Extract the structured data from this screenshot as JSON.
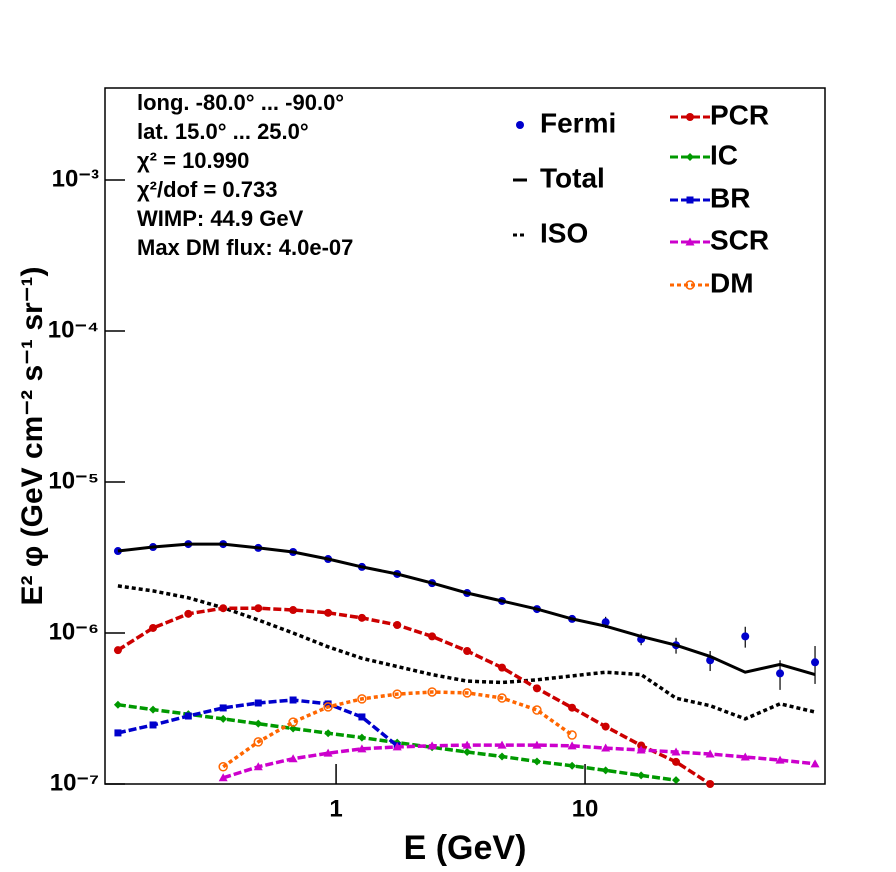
{
  "chart_data": {
    "type": "line",
    "xlabel": "E (GeV)",
    "ylabel": "E² φ (GeV cm⁻² s⁻¹ sr⁻¹)",
    "annotations": [
      "long. -80.0° ... -90.0°",
      "lat. 15.0° ... 25.0°",
      "χ² = 10.990",
      "χ²/dof = 0.733",
      "WIMP: 44.9 GeV",
      "Max DM flux: 4.0e-07"
    ],
    "xlog": true,
    "ylog": true,
    "xlim": [
      0.118,
      92
    ],
    "ylim": [
      1e-07,
      0.00407
    ],
    "xticks": [
      1,
      10
    ],
    "yticks": [
      {
        "value": 1e-07,
        "label": "10⁻⁷"
      },
      {
        "value": 1e-06,
        "label": "10⁻⁶"
      },
      {
        "value": 1e-05,
        "label": "10⁻⁵"
      },
      {
        "value": 0.0001,
        "label": "10⁻⁴"
      },
      {
        "value": 0.001,
        "label": "10⁻³"
      }
    ],
    "x": [
      0.133,
      0.184,
      0.255,
      0.352,
      0.487,
      0.672,
      0.929,
      1.27,
      1.76,
      2.43,
      3.36,
      4.64,
      6.41,
      8.87,
      12.1,
      16.8,
      23.2,
      31.8,
      44.0,
      60.7,
      83.9
    ],
    "series": [
      {
        "name": "Fermi",
        "color": "#0000cc",
        "marker": "dot",
        "line": "none",
        "values": [
          3.49e-06,
          3.71e-06,
          3.88e-06,
          3.88e-06,
          3.66e-06,
          3.44e-06,
          3.09e-06,
          2.74e-06,
          2.46e-06,
          2.14e-06,
          1.84e-06,
          1.63e-06,
          1.44e-06,
          1.24e-06,
          1.18e-06,
          9.1e-07,
          8.3e-07,
          6.6e-07,
          9.5e-07,
          5.4e-07,
          6.4e-07
        ],
        "errors": [
          5e-08,
          5e-08,
          5e-08,
          5e-08,
          5e-08,
          5e-08,
          4e-08,
          4e-08,
          4e-08,
          4e-08,
          4e-08,
          4e-08,
          4e-08,
          5e-08,
          1e-07,
          8e-08,
          1e-07,
          1e-07,
          1.5e-07,
          1.2e-07,
          1.8e-07
        ]
      },
      {
        "name": "Total",
        "color": "#000000",
        "marker": "none",
        "line": "solid",
        "values": [
          3.49e-06,
          3.71e-06,
          3.88e-06,
          3.88e-06,
          3.66e-06,
          3.44e-06,
          3.09e-06,
          2.74e-06,
          2.46e-06,
          2.14e-06,
          1.84e-06,
          1.63e-06,
          1.44e-06,
          1.24e-06,
          1.11e-06,
          9.5e-07,
          8.3e-07,
          7e-07,
          5.5e-07,
          6.2e-07,
          5.3e-07
        ]
      },
      {
        "name": "ISO",
        "color": "#000000",
        "marker": "none",
        "line": "dotted",
        "values": [
          2.05e-06,
          1.9e-06,
          1.71e-06,
          1.47e-06,
          1.22e-06,
          1e-06,
          8.1e-07,
          6.8e-07,
          6e-07,
          5.3e-07,
          4.8e-07,
          4.7e-07,
          4.9e-07,
          5.2e-07,
          5.5e-07,
          5.3e-07,
          3.7e-07,
          3.3e-07,
          2.7e-07,
          3.4e-07,
          3e-07
        ]
      },
      {
        "name": "PCR",
        "color": "#cc0000",
        "marker": "circle",
        "line": "dashed",
        "values": [
          7.7e-07,
          1.08e-06,
          1.34e-06,
          1.46e-06,
          1.46e-06,
          1.42e-06,
          1.36e-06,
          1.26e-06,
          1.13e-06,
          9.5e-07,
          7.6e-07,
          5.9e-07,
          4.3e-07,
          3.2e-07,
          2.4e-07,
          1.8e-07,
          1.4e-07,
          1e-07,
          null,
          null,
          null
        ]
      },
      {
        "name": "IC",
        "color": "#009900",
        "marker": "diamond",
        "line": "dashed",
        "values": [
          3.35e-07,
          3.11e-07,
          2.9e-07,
          2.7e-07,
          2.51e-07,
          2.33e-07,
          2.17e-07,
          2.03e-07,
          1.88e-07,
          1.75e-07,
          1.63e-07,
          1.52e-07,
          1.41e-07,
          1.32e-07,
          1.23e-07,
          1.14e-07,
          1.06e-07,
          null,
          null,
          null,
          null
        ]
      },
      {
        "name": "BR",
        "color": "#0000cc",
        "marker": "square",
        "line": "dashed",
        "values": [
          2.18e-07,
          2.46e-07,
          2.82e-07,
          3.19e-07,
          3.44e-07,
          3.6e-07,
          3.39e-07,
          2.78e-07,
          1.79e-07,
          null,
          null,
          null,
          null,
          null,
          null,
          null,
          null,
          null,
          null,
          null,
          null
        ]
      },
      {
        "name": "SCR",
        "color": "#cc00cc",
        "marker": "triangle",
        "line": "dashed",
        "values": [
          null,
          null,
          null,
          1.1e-07,
          1.3e-07,
          1.47e-07,
          1.6e-07,
          1.71e-07,
          1.76e-07,
          1.79e-07,
          1.81e-07,
          1.81e-07,
          1.81e-07,
          1.79e-07,
          1.73e-07,
          1.68e-07,
          1.63e-07,
          1.58e-07,
          1.51e-07,
          1.44e-07,
          1.36e-07
        ]
      },
      {
        "name": "DM",
        "color": "#ff6600",
        "marker": "open-circle",
        "line": "dotted",
        "values": [
          null,
          null,
          null,
          1.3e-07,
          1.9e-07,
          2.57e-07,
          3.24e-07,
          3.66e-07,
          3.94e-07,
          4.07e-07,
          4.01e-07,
          3.71e-07,
          3.09e-07,
          2.11e-07,
          null,
          null,
          null,
          null,
          null,
          null,
          null
        ]
      }
    ]
  }
}
